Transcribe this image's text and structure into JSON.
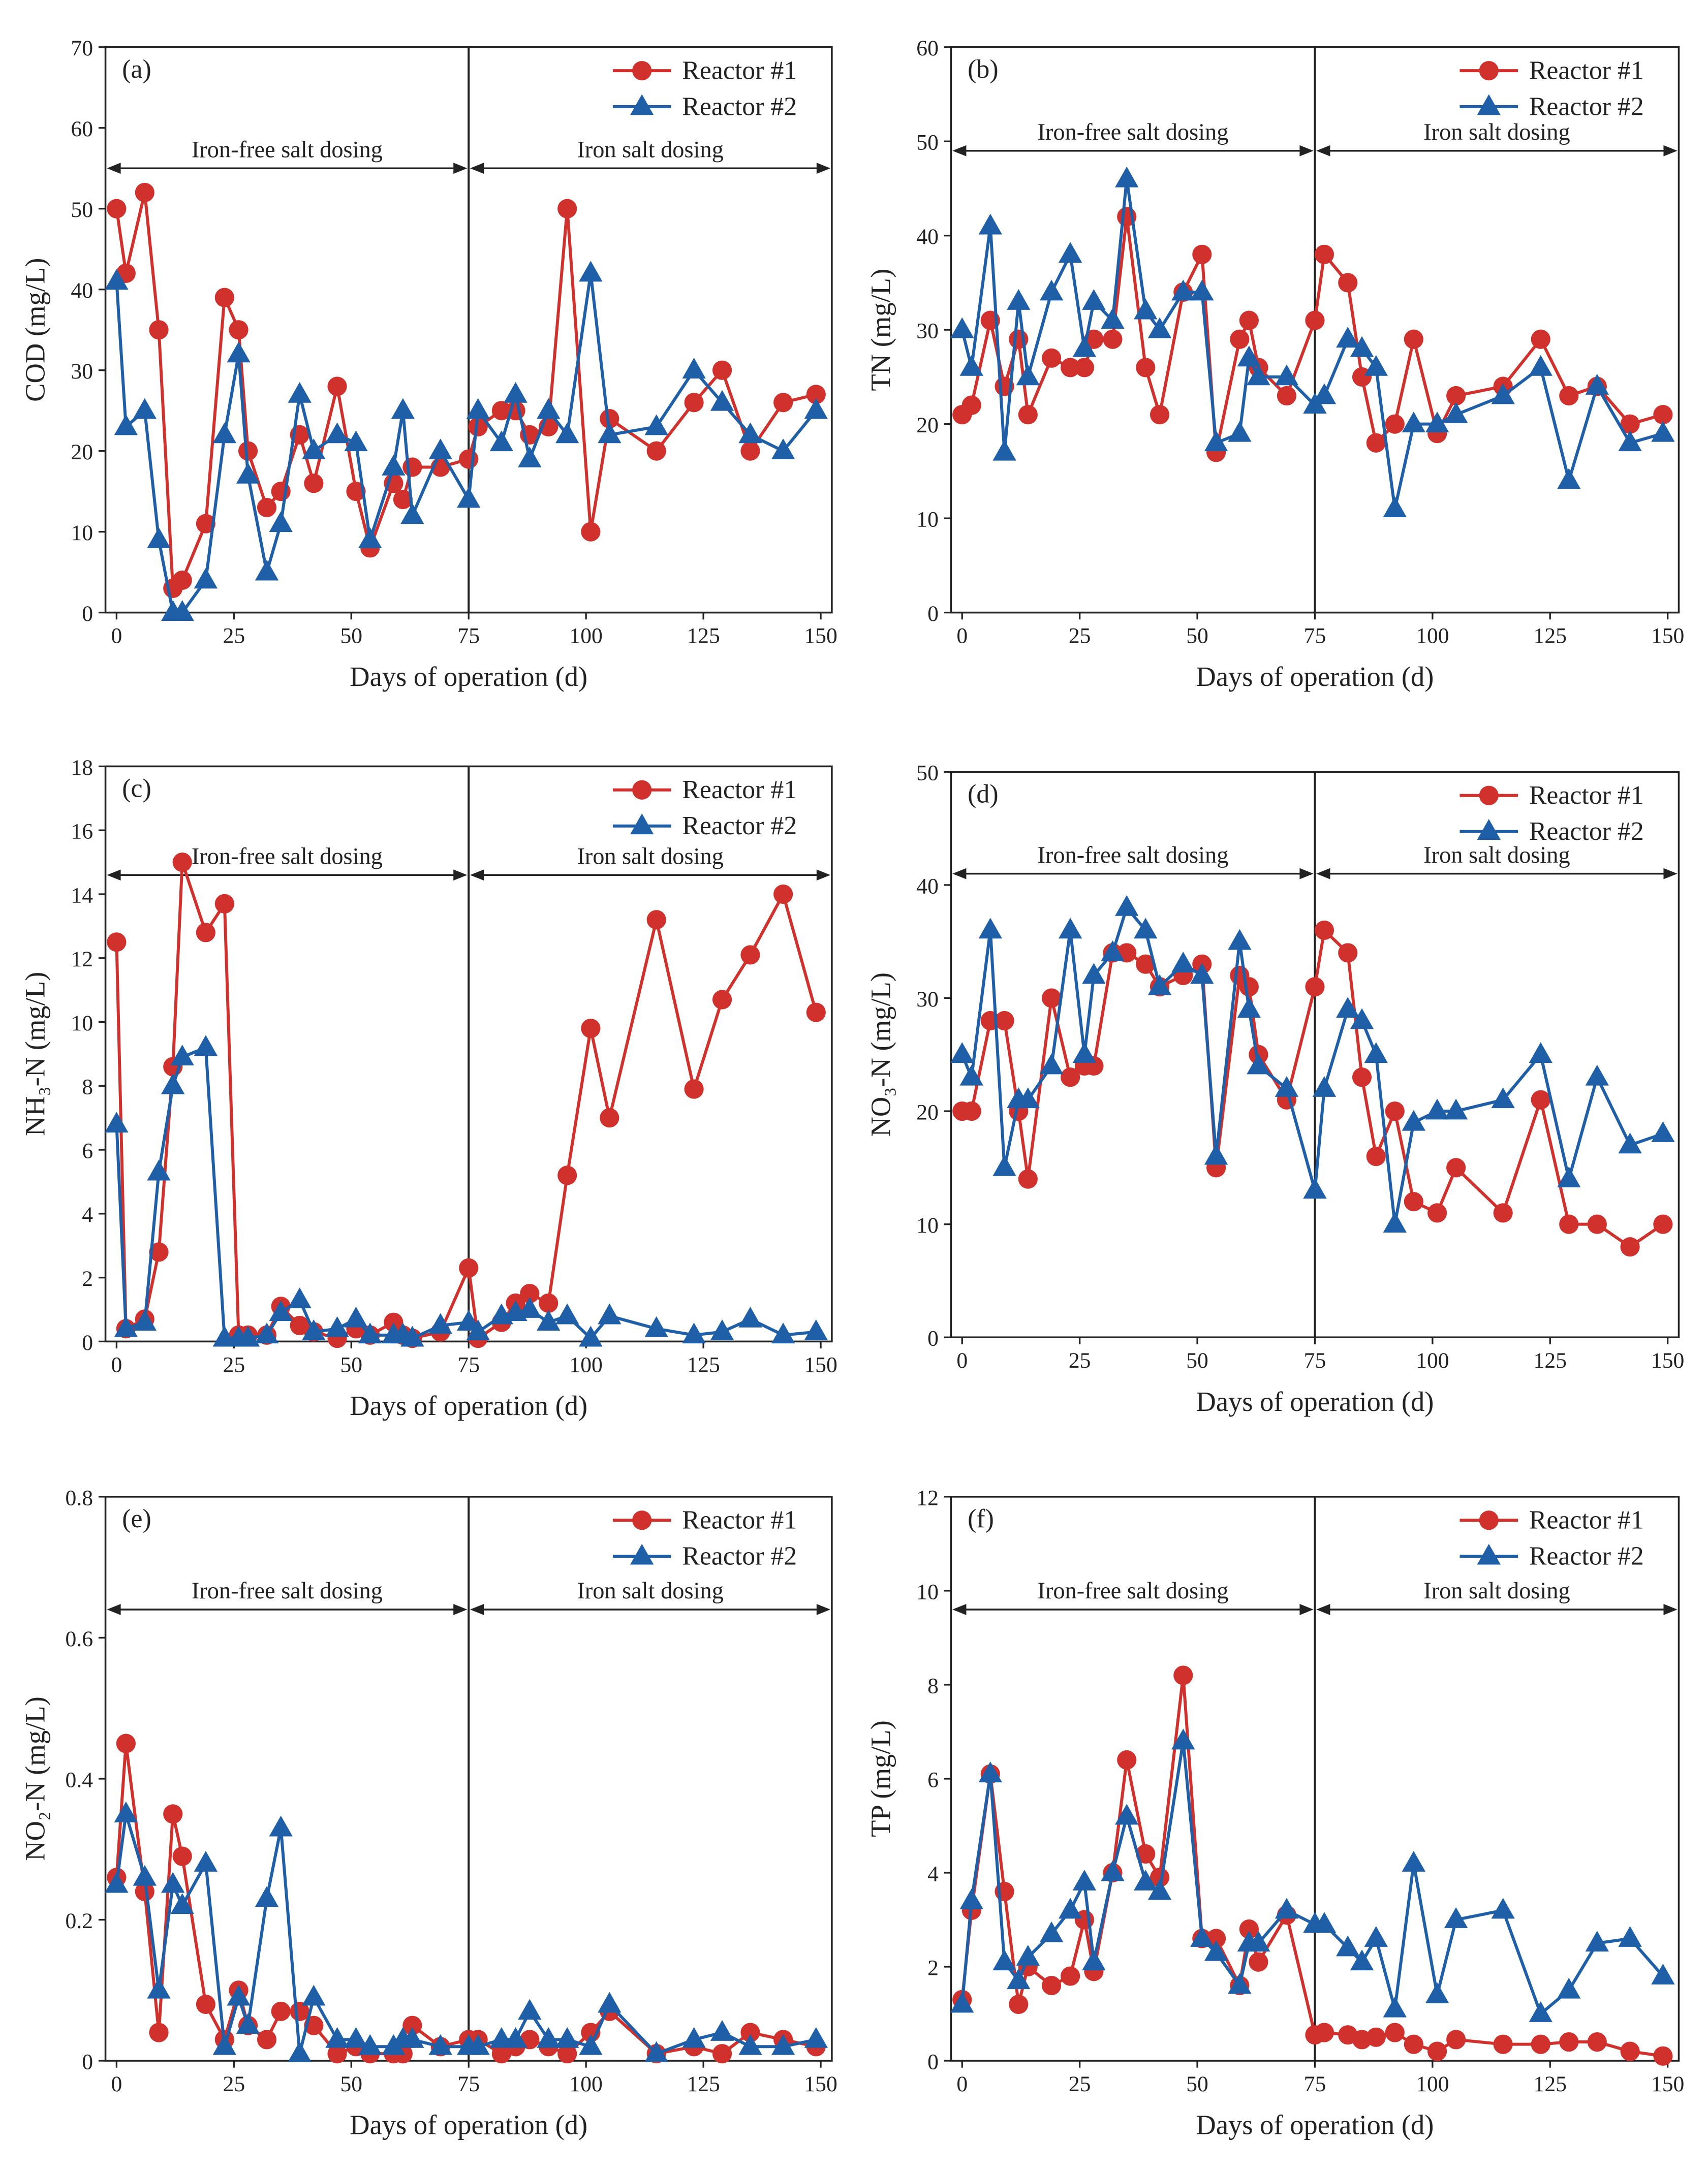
{
  "colors": {
    "reactor1": "#d0312d",
    "reactor2": "#1f5fa8",
    "axis": "#222222"
  },
  "chart_data": [
    {
      "type": "line",
      "panel_label": "(a)",
      "xlabel": "Days of operation (d)",
      "ylabel": "COD (mg/L)",
      "xlim": [
        0,
        150
      ],
      "ylim": [
        0,
        70
      ],
      "xticks": [
        0,
        25,
        50,
        75,
        100,
        125,
        150
      ],
      "yticks": [
        0,
        10,
        20,
        30,
        40,
        50,
        60,
        70
      ],
      "legend": [
        "Reactor #1",
        "Reactor #2"
      ],
      "legend_position": "top-right",
      "divider_x": 75,
      "annotations": [
        "Iron-free salt dosing",
        "Iron salt dosing"
      ],
      "annotation_y": 55,
      "x": [
        0,
        2,
        6,
        9,
        12,
        14,
        19,
        23,
        26,
        28,
        32,
        35,
        39,
        42,
        47,
        51,
        54,
        59,
        61,
        63,
        69,
        75,
        77,
        82,
        85,
        88,
        92,
        96,
        101,
        105,
        115,
        123,
        129,
        135,
        142,
        149
      ],
      "series": [
        {
          "name": "Reactor #1",
          "values": [
            50,
            42,
            52,
            35,
            3,
            4,
            11,
            39,
            35,
            20,
            13,
            15,
            22,
            16,
            28,
            15,
            8,
            16,
            14,
            18,
            18,
            19,
            23,
            25,
            25,
            22,
            23,
            50,
            10,
            24,
            20,
            26,
            30,
            20,
            26,
            27
          ]
        },
        {
          "name": "Reactor #2",
          "values": [
            41,
            23,
            25,
            9,
            0,
            0,
            4,
            22,
            32,
            17,
            5,
            11,
            27,
            20,
            22,
            21,
            9,
            18,
            25,
            12,
            20,
            14,
            25,
            21,
            27,
            19,
            25,
            22,
            42,
            22,
            23,
            30,
            26,
            22,
            20,
            25
          ]
        }
      ]
    },
    {
      "type": "line",
      "panel_label": "(b)",
      "xlabel": "Days of operation (d)",
      "ylabel": "TN (mg/L)",
      "xlim": [
        0,
        150
      ],
      "ylim": [
        0,
        60
      ],
      "xticks": [
        0,
        25,
        50,
        75,
        100,
        125,
        150
      ],
      "yticks": [
        0,
        10,
        20,
        30,
        40,
        50,
        60
      ],
      "legend": [
        "Reactor #1",
        "Reactor #2"
      ],
      "legend_position": "top-right",
      "divider_x": 75,
      "annotations": [
        "Iron-free salt dosing",
        "Iron salt dosing"
      ],
      "annotation_y": 49,
      "x": [
        0,
        2,
        6,
        9,
        12,
        14,
        19,
        23,
        26,
        28,
        32,
        35,
        39,
        42,
        47,
        51,
        54,
        59,
        61,
        63,
        69,
        75,
        77,
        82,
        85,
        88,
        92,
        96,
        101,
        105,
        115,
        123,
        129,
        135,
        142,
        149
      ],
      "series": [
        {
          "name": "Reactor #1",
          "values": [
            21,
            22,
            31,
            24,
            29,
            21,
            27,
            26,
            26,
            29,
            29,
            42,
            26,
            21,
            34,
            38,
            17,
            29,
            31,
            26,
            23,
            31,
            38,
            35,
            25,
            18,
            20,
            29,
            19,
            23,
            24,
            29,
            23,
            24,
            20,
            21
          ]
        },
        {
          "name": "Reactor #2",
          "values": [
            30,
            26,
            41,
            17,
            33,
            25,
            34,
            38,
            28,
            33,
            31,
            46,
            32,
            30,
            34,
            34,
            18,
            19,
            27,
            25,
            25,
            22,
            23,
            29,
            28,
            26,
            11,
            20,
            20,
            21,
            23,
            26,
            14,
            24,
            18,
            19
          ]
        }
      ]
    },
    {
      "type": "line",
      "panel_label": "(c)",
      "xlabel": "Days of operation (d)",
      "ylabel": "NH₃-N (mg/L)",
      "xlim": [
        0,
        150
      ],
      "ylim": [
        0,
        18
      ],
      "xticks": [
        0,
        25,
        50,
        75,
        100,
        125,
        150
      ],
      "yticks": [
        0,
        2,
        4,
        6,
        8,
        10,
        12,
        14,
        16,
        18
      ],
      "legend": [
        "Reactor #1",
        "Reactor #2"
      ],
      "legend_position": "top-right",
      "divider_x": 75,
      "annotations": [
        "Iron-free salt dosing",
        "Iron salt dosing"
      ],
      "annotation_y": 14.6,
      "x": [
        0,
        2,
        6,
        9,
        12,
        14,
        19,
        23,
        26,
        28,
        32,
        35,
        39,
        42,
        47,
        51,
        54,
        59,
        61,
        63,
        69,
        75,
        77,
        82,
        85,
        88,
        92,
        96,
        101,
        105,
        115,
        123,
        129,
        135,
        142,
        149
      ],
      "series": [
        {
          "name": "Reactor #1",
          "values": [
            12.5,
            0.4,
            0.7,
            2.8,
            8.6,
            15.0,
            12.8,
            13.7,
            0.2,
            0.2,
            0.2,
            1.1,
            0.5,
            0.3,
            0.1,
            0.4,
            0.2,
            0.6,
            0.2,
            0.1,
            0.3,
            2.3,
            0.1,
            0.6,
            1.2,
            1.5,
            1.2,
            5.2,
            9.8,
            7.0,
            13.2,
            7.9,
            10.7,
            12.1,
            14.0,
            10.3
          ]
        },
        {
          "name": "Reactor #2",
          "values": [
            6.8,
            0.4,
            0.6,
            5.3,
            8.0,
            8.9,
            9.2,
            0.1,
            0.1,
            0.1,
            0.2,
            0.9,
            1.3,
            0.3,
            0.4,
            0.7,
            0.2,
            0.2,
            0.2,
            0.1,
            0.5,
            0.6,
            0.3,
            0.8,
            0.9,
            1.0,
            0.6,
            0.8,
            0.1,
            0.8,
            0.4,
            0.2,
            0.3,
            0.7,
            0.2,
            0.3
          ]
        }
      ]
    },
    {
      "type": "line",
      "panel_label": "(d)",
      "xlabel": "Days of operation (d)",
      "ylabel": "NO₃-N (mg/L)",
      "xlim": [
        0,
        150
      ],
      "ylim": [
        0,
        50
      ],
      "xticks": [
        0,
        25,
        50,
        75,
        100,
        125,
        150
      ],
      "yticks": [
        0,
        10,
        20,
        30,
        40,
        50
      ],
      "legend": [
        "Reactor #1",
        "Reactor #2"
      ],
      "legend_position": "top-right",
      "divider_x": 75,
      "annotations": [
        "Iron-free salt dosing",
        "Iron salt dosing"
      ],
      "annotation_y": 41,
      "x": [
        0,
        2,
        6,
        9,
        12,
        14,
        19,
        23,
        26,
        28,
        32,
        35,
        39,
        42,
        47,
        51,
        54,
        59,
        61,
        63,
        69,
        75,
        77,
        82,
        85,
        88,
        92,
        96,
        101,
        105,
        115,
        123,
        129,
        135,
        142,
        149
      ],
      "series": [
        {
          "name": "Reactor #1",
          "values": [
            20,
            20,
            28,
            28,
            20,
            14,
            30,
            23,
            24,
            24,
            34,
            34,
            33,
            31,
            32,
            33,
            15,
            32,
            31,
            25,
            21,
            31,
            36,
            34,
            23,
            16,
            20,
            12,
            11,
            15,
            11,
            21,
            10,
            10,
            8,
            10
          ]
        },
        {
          "name": "Reactor #2",
          "values": [
            25,
            23,
            36,
            15,
            21,
            21,
            24,
            36,
            25,
            32,
            34,
            38,
            36,
            31,
            33,
            32,
            16,
            35,
            29,
            24,
            22,
            13,
            22,
            29,
            28,
            25,
            10,
            19,
            20,
            20,
            21,
            25,
            14,
            23,
            17,
            18
          ]
        }
      ]
    },
    {
      "type": "line",
      "panel_label": "(e)",
      "xlabel": "Days of operation (d)",
      "ylabel": "NO₂-N (mg/L)",
      "xlim": [
        0,
        150
      ],
      "ylim": [
        0,
        0.8
      ],
      "xticks": [
        0,
        25,
        50,
        75,
        100,
        125,
        150
      ],
      "yticks": [
        0,
        0.2,
        0.4,
        0.6,
        0.8
      ],
      "legend": [
        "Reactor #1",
        "Reactor #2"
      ],
      "legend_position": "top-right",
      "divider_x": 75,
      "annotations": [
        "Iron-free salt dosing",
        "Iron salt dosing"
      ],
      "annotation_y": 0.64,
      "x": [
        0,
        2,
        6,
        9,
        12,
        14,
        19,
        23,
        26,
        28,
        32,
        35,
        39,
        42,
        47,
        51,
        54,
        59,
        61,
        63,
        69,
        75,
        77,
        82,
        85,
        88,
        92,
        96,
        101,
        105,
        115,
        123,
        129,
        135,
        142,
        149
      ],
      "series": [
        {
          "name": "Reactor #1",
          "values": [
            0.26,
            0.45,
            0.24,
            0.04,
            0.35,
            0.29,
            0.08,
            0.03,
            0.1,
            0.05,
            0.03,
            0.07,
            0.07,
            0.05,
            0.01,
            0.02,
            0.01,
            0.01,
            0.01,
            0.05,
            0.02,
            0.03,
            0.03,
            0.01,
            0.02,
            0.03,
            0.02,
            0.01,
            0.04,
            0.07,
            0.01,
            0.02,
            0.01,
            0.04,
            0.03,
            0.02
          ]
        },
        {
          "name": "Reactor #2",
          "values": [
            0.25,
            0.35,
            0.26,
            0.1,
            0.25,
            0.22,
            0.28,
            0.02,
            0.09,
            0.05,
            0.23,
            0.33,
            0.01,
            0.09,
            0.03,
            0.03,
            0.02,
            0.02,
            0.03,
            0.03,
            0.02,
            0.02,
            0.02,
            0.03,
            0.03,
            0.07,
            0.03,
            0.03,
            0.02,
            0.08,
            0.01,
            0.03,
            0.04,
            0.02,
            0.02,
            0.03
          ]
        }
      ]
    },
    {
      "type": "line",
      "panel_label": "(f)",
      "xlabel": "Days of operation (d)",
      "ylabel": "TP (mg/L)",
      "xlim": [
        0,
        150
      ],
      "ylim": [
        0,
        12
      ],
      "xticks": [
        0,
        25,
        50,
        75,
        100,
        125,
        150
      ],
      "yticks": [
        0,
        2,
        4,
        6,
        8,
        10,
        12
      ],
      "legend": [
        "Reactor #1",
        "Reactor #2"
      ],
      "legend_position": "top-right",
      "divider_x": 75,
      "annotations": [
        "Iron-free salt dosing",
        "Iron salt dosing"
      ],
      "annotation_y": 9.6,
      "x": [
        0,
        2,
        6,
        9,
        12,
        14,
        19,
        23,
        26,
        28,
        32,
        35,
        39,
        42,
        47,
        51,
        54,
        59,
        61,
        63,
        69,
        75,
        77,
        82,
        85,
        88,
        92,
        96,
        101,
        105,
        115,
        123,
        129,
        135,
        142,
        149
      ],
      "series": [
        {
          "name": "Reactor #1",
          "values": [
            1.3,
            3.2,
            6.1,
            3.6,
            1.2,
            2.0,
            1.6,
            1.8,
            3.0,
            1.9,
            4.0,
            6.4,
            4.4,
            3.9,
            8.2,
            2.6,
            2.6,
            1.6,
            2.8,
            2.1,
            3.1,
            0.55,
            0.6,
            0.55,
            0.45,
            0.5,
            0.6,
            0.35,
            0.2,
            0.45,
            0.35,
            0.35,
            0.4,
            0.4,
            0.2,
            0.1
          ]
        },
        {
          "name": "Reactor #2",
          "values": [
            1.2,
            3.4,
            6.1,
            2.1,
            1.7,
            2.2,
            2.7,
            3.2,
            3.8,
            2.1,
            4.0,
            5.2,
            3.8,
            3.6,
            6.8,
            2.6,
            2.3,
            1.6,
            2.5,
            2.5,
            3.2,
            2.9,
            2.9,
            2.4,
            2.1,
            2.6,
            1.1,
            4.2,
            1.4,
            3.0,
            3.2,
            1.0,
            1.5,
            2.5,
            2.6,
            1.8
          ]
        }
      ]
    }
  ]
}
